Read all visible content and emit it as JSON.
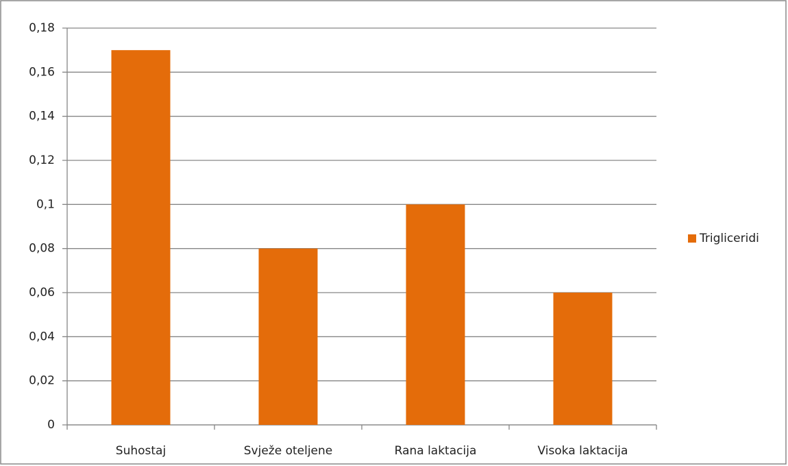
{
  "chart_data": {
    "type": "bar",
    "categories": [
      "Suhostaj",
      "Svježe oteljene",
      "Rana laktacija",
      "Visoka laktacija"
    ],
    "series": [
      {
        "name": "Trigliceridi",
        "color": "#e46c0a",
        "values": [
          0.17,
          0.08,
          0.1,
          0.06
        ]
      }
    ],
    "ylim": [
      0,
      0.18
    ],
    "yticks": [
      0,
      {
        "value": 0.02,
        "label": "0,02"
      },
      {
        "value": 0.04,
        "label": "0,04"
      },
      {
        "value": 0.06,
        "label": "0,06"
      },
      {
        "value": 0.08,
        "label": "0,08"
      },
      {
        "value": 0.1,
        "label": "0,1"
      },
      {
        "value": 0.12,
        "label": "0,12"
      },
      {
        "value": 0.14,
        "label": "0,14"
      },
      {
        "value": 0.16,
        "label": "0,16"
      },
      {
        "value": 0.18,
        "label": "0,18"
      }
    ],
    "grid": true,
    "legend": "right"
  }
}
